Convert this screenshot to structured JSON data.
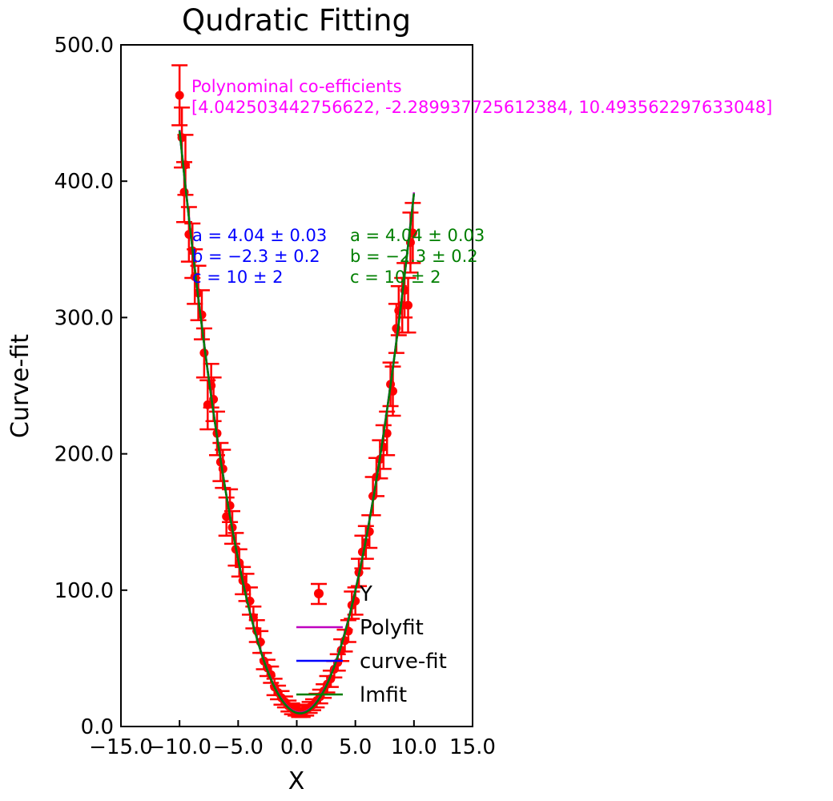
{
  "chart_data": {
    "type": "scatter",
    "title": "Qudratic Fitting",
    "xlabel": "X",
    "ylabel": "Curve-fit",
    "xlim": [
      -15,
      15
    ],
    "ylim": [
      0,
      500
    ],
    "xticks": [
      "−15.0",
      "−10.0",
      "−5.0",
      "0.0",
      "5.0",
      "10.0",
      "15.0"
    ],
    "yticks": [
      "0.0",
      "100.0",
      "200.0",
      "300.0",
      "400.0",
      "500.0"
    ],
    "grid": false,
    "legend_position": "lower-right",
    "colors": {
      "points": "#ff0000",
      "polyfit": "#bf00bf",
      "curve_fit": "#0000ff",
      "lmfit": "#007f00",
      "annotation_polyfit": "#ff00ff"
    },
    "series": [
      {
        "name": "Y",
        "kind": "errorbar",
        "points": [
          [
            -10,
            463,
            22
          ],
          [
            -9.8,
            432,
            22
          ],
          [
            -9.5,
            412,
            22
          ],
          [
            -9.6,
            392,
            22
          ],
          [
            -9.2,
            361,
            20
          ],
          [
            -8.9,
            349,
            20
          ],
          [
            -8.7,
            330,
            20
          ],
          [
            -8.4,
            318,
            20
          ],
          [
            -8.1,
            302,
            18
          ],
          [
            -7.9,
            274,
            18
          ],
          [
            -7.6,
            236,
            18
          ],
          [
            -7.3,
            250,
            16
          ],
          [
            -7.1,
            240,
            16
          ],
          [
            -6.8,
            215,
            16
          ],
          [
            -6.5,
            194,
            14
          ],
          [
            -6.3,
            189,
            14
          ],
          [
            -6.0,
            154,
            14
          ],
          [
            -5.7,
            162,
            12
          ],
          [
            -5.5,
            146,
            12
          ],
          [
            -5.2,
            130,
            12
          ],
          [
            -4.9,
            120,
            10
          ],
          [
            -4.6,
            107,
            10
          ],
          [
            -4.3,
            102,
            10
          ],
          [
            -4.0,
            92,
            10
          ],
          [
            -3.7,
            80,
            8
          ],
          [
            -3.4,
            70,
            8
          ],
          [
            -3.1,
            62,
            8
          ],
          [
            -2.8,
            48,
            6
          ],
          [
            -2.5,
            43,
            6
          ],
          [
            -2.2,
            38,
            6
          ],
          [
            -1.9,
            29,
            6
          ],
          [
            -1.6,
            25,
            5
          ],
          [
            -1.3,
            21,
            5
          ],
          [
            -1.0,
            18,
            4
          ],
          [
            -0.7,
            15,
            4
          ],
          [
            -0.4,
            13,
            4
          ],
          [
            -0.1,
            12,
            4
          ],
          [
            0.2,
            11,
            4
          ],
          [
            0.5,
            11,
            4
          ],
          [
            0.8,
            12,
            4
          ],
          [
            1.1,
            14,
            4
          ],
          [
            1.4,
            16,
            4
          ],
          [
            1.7,
            19,
            5
          ],
          [
            2.0,
            22,
            5
          ],
          [
            2.3,
            26,
            5
          ],
          [
            2.6,
            31,
            6
          ],
          [
            2.9,
            35,
            6
          ],
          [
            3.2,
            42,
            6
          ],
          [
            3.5,
            47,
            6
          ],
          [
            3.8,
            56,
            8
          ],
          [
            4.1,
            63,
            8
          ],
          [
            4.4,
            70,
            8
          ],
          [
            4.7,
            89,
            10
          ],
          [
            5.0,
            92,
            10
          ],
          [
            5.3,
            113,
            10
          ],
          [
            5.6,
            128,
            12
          ],
          [
            5.9,
            135,
            12
          ],
          [
            6.2,
            143,
            12
          ],
          [
            6.5,
            169,
            14
          ],
          [
            6.8,
            183,
            14
          ],
          [
            7.1,
            196,
            14
          ],
          [
            7.4,
            205,
            16
          ],
          [
            7.7,
            215,
            16
          ],
          [
            8.0,
            251,
            16
          ],
          [
            8.2,
            246,
            18
          ],
          [
            8.5,
            292,
            18
          ],
          [
            8.7,
            305,
            18
          ],
          [
            9.0,
            309,
            20
          ],
          [
            9.2,
            320,
            20
          ],
          [
            9.5,
            309,
            20
          ],
          [
            9.7,
            355,
            22
          ],
          [
            9.9,
            362,
            22
          ]
        ]
      },
      {
        "name": "Polyfit",
        "kind": "line",
        "coefficients": [
          4.042503442756622,
          -2.289937725612384,
          10.493562297633048
        ]
      },
      {
        "name": "curve-fit",
        "kind": "line",
        "coefficients": [
          4.04,
          -2.3,
          10
        ]
      },
      {
        "name": "lmfit",
        "kind": "line",
        "coefficients": [
          4.04,
          -2.3,
          10
        ]
      }
    ],
    "annotations": {
      "polyfit": {
        "line1": "Polynominal co-efficients",
        "line2": "[4.042503442756622, -2.289937725612384, 10.493562297633048]"
      },
      "curve_fit": {
        "a": "a = 4.04 ± 0.03",
        "b": "b = −2.3 ± 0.2",
        "c": "c = 10 ± 2"
      },
      "lmfit": {
        "a": "a = 4.04 ± 0.03",
        "b": "b = −2.3 ± 0.2",
        "c": "c = 10 ± 2"
      }
    },
    "legend": [
      "Y",
      "Polyfit",
      "curve-fit",
      "lmfit"
    ]
  }
}
